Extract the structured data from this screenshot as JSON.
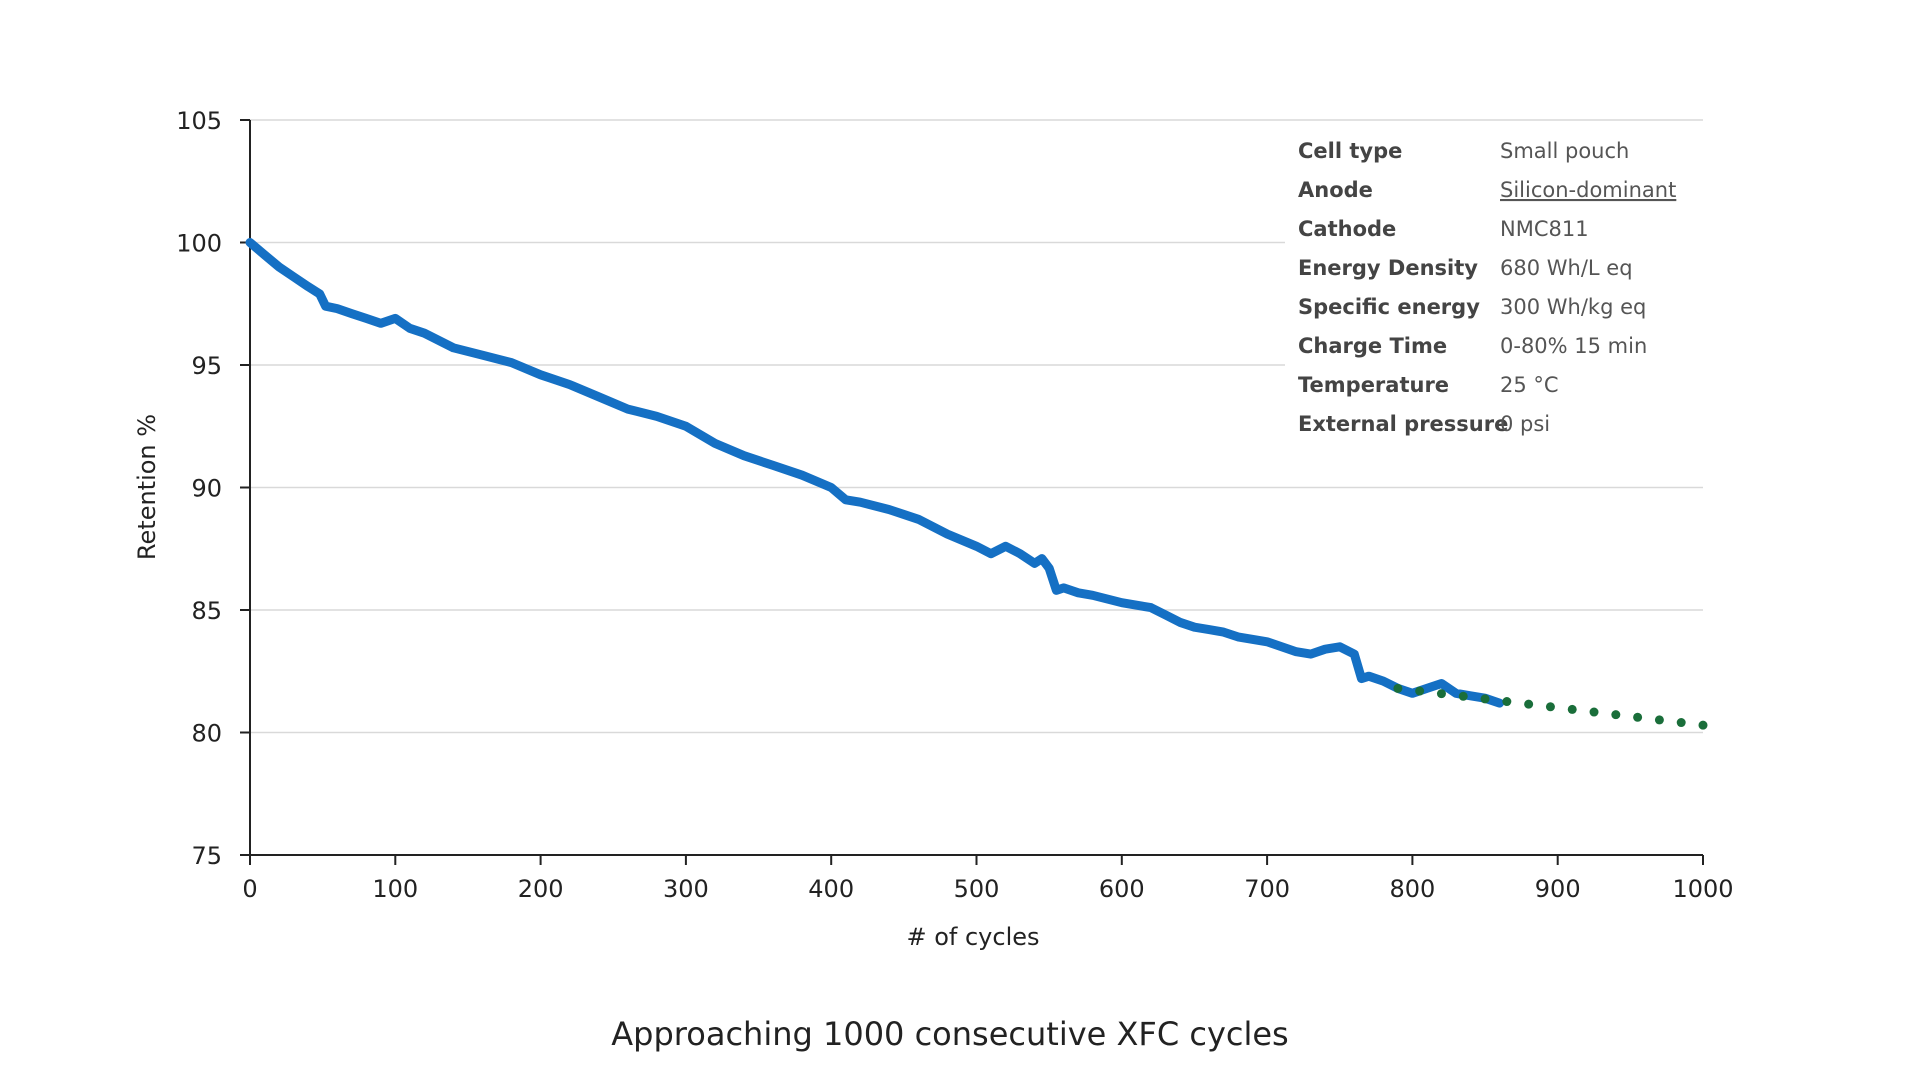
{
  "caption": "Approaching 1000 consecutive XFC cycles",
  "specs": [
    {
      "key": "Cell type",
      "value": "Small pouch",
      "underline": false
    },
    {
      "key": "Anode",
      "value": "Silicon-dominant",
      "underline": true
    },
    {
      "key": "Cathode",
      "value": "NMC811",
      "underline": false
    },
    {
      "key": "Energy Density",
      "value": "680 Wh/L eq",
      "underline": false
    },
    {
      "key": "Specific energy",
      "value": "300 Wh/kg eq",
      "underline": false
    },
    {
      "key": "Charge Time",
      "value": "0-80% 15 min",
      "underline": false
    },
    {
      "key": "Temperature",
      "value": "25 °C",
      "underline": false
    },
    {
      "key": "External pressure",
      "value": "0 psi",
      "underline": false
    }
  ],
  "chart_data": {
    "type": "line",
    "title": "",
    "xlabel": "# of cycles",
    "ylabel": "Retention %",
    "xlim": [
      0,
      1000
    ],
    "ylim": [
      75,
      105
    ],
    "xticks": [
      0,
      100,
      200,
      300,
      400,
      500,
      600,
      700,
      800,
      900,
      1000
    ],
    "yticks": [
      75,
      80,
      85,
      90,
      95,
      100,
      105
    ],
    "grid": "horizontal",
    "series": [
      {
        "style": "solid",
        "color": "#1570c4",
        "x": [
          0,
          10,
          20,
          30,
          40,
          48,
          52,
          60,
          70,
          80,
          90,
          100,
          110,
          120,
          140,
          160,
          180,
          200,
          220,
          240,
          260,
          280,
          300,
          320,
          340,
          360,
          380,
          400,
          410,
          420,
          440,
          460,
          480,
          500,
          510,
          520,
          530,
          540,
          545,
          550,
          555,
          560,
          570,
          580,
          600,
          620,
          630,
          640,
          650,
          660,
          670,
          680,
          700,
          720,
          730,
          740,
          750,
          760,
          765,
          770,
          780,
          790,
          800,
          810,
          820,
          830,
          840,
          850,
          860
        ],
        "y": [
          100,
          99.5,
          99.0,
          98.6,
          98.2,
          97.9,
          97.4,
          97.3,
          97.1,
          96.9,
          96.7,
          96.9,
          96.5,
          96.3,
          95.7,
          95.4,
          95.1,
          94.6,
          94.2,
          93.7,
          93.2,
          92.9,
          92.5,
          91.8,
          91.3,
          90.9,
          90.5,
          90.0,
          89.5,
          89.4,
          89.1,
          88.7,
          88.1,
          87.6,
          87.3,
          87.6,
          87.3,
          86.9,
          87.1,
          86.7,
          85.8,
          85.9,
          85.7,
          85.6,
          85.3,
          85.1,
          84.8,
          84.5,
          84.3,
          84.2,
          84.1,
          83.9,
          83.7,
          83.3,
          83.2,
          83.4,
          83.5,
          83.2,
          82.2,
          82.3,
          82.1,
          81.8,
          81.6,
          81.8,
          82.0,
          81.6,
          81.5,
          81.4,
          81.2
        ]
      },
      {
        "style": "dotted",
        "color": "#1a6e3a",
        "x": [
          790,
          1000
        ],
        "y": [
          81.8,
          80.3
        ]
      }
    ]
  }
}
